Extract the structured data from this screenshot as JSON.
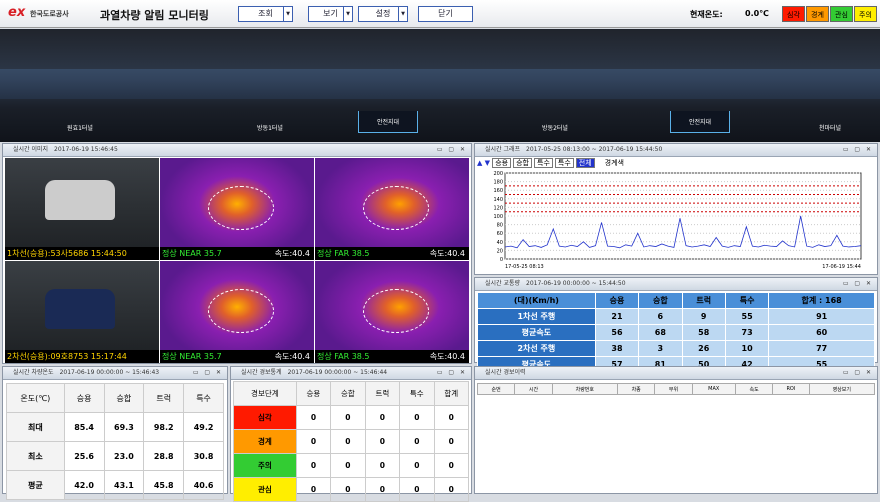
{
  "header": {
    "logo_mark": "ex",
    "logo": "한국도로공사",
    "title": "과열차량 알림 모니터링",
    "buttons": [
      "조회",
      "보기",
      "설정",
      "닫기"
    ],
    "temp_label": "현재온도:",
    "temp_value": "0.0℃",
    "status": [
      "심각",
      "경계",
      "관심",
      "주의"
    ]
  },
  "tunnel": {
    "labels": [
      "원효1터널",
      "방동1터널",
      "안전지대",
      "방동2터널",
      "안전지대",
      "천마터널"
    ]
  },
  "camera": {
    "title": "실시간 이미지",
    "time": "2017-06-19 15:46:45",
    "rows": [
      {
        "plate": "1차선(승용):53사5686 15:44:50",
        "near": "정상 NEAR 35.7",
        "near_speed": "속도:40.4",
        "far": "정상 FAR 38.5",
        "far_speed": "속도:40.4"
      },
      {
        "plate": "2차선(승용):09호8753 15:17:44",
        "near": "정상 NEAR 35.7",
        "near_speed": "속도:40.4",
        "far": "정상 FAR 38.5",
        "far_speed": "속도:40.4"
      }
    ]
  },
  "graph": {
    "title": "실시간 그래프",
    "period": "2017-05-25 08:13:00 ~ 2017-06-19 15:44:50",
    "tabs": [
      "승용",
      "승합",
      "특수",
      "특수",
      "전체"
    ],
    "legend": "경계색",
    "x_start": "17-05-25 08:13",
    "x_end": "17-06-19 15:44",
    "chart": {
      "type": "line",
      "color": "#2233cc",
      "ylim": [
        0,
        200
      ],
      "yticks": [
        0,
        20,
        40,
        60,
        80,
        100,
        120,
        140,
        160,
        180,
        200
      ],
      "thresholds": [
        170,
        150,
        130,
        110
      ],
      "threshold_color": "#cc0000",
      "values": [
        28,
        30,
        26,
        45,
        29,
        31,
        27,
        33,
        70,
        30,
        28,
        32,
        29,
        40,
        27,
        31,
        85,
        30,
        29,
        26,
        33,
        30,
        60,
        28,
        31,
        29,
        35,
        30,
        27,
        95,
        31,
        28,
        30,
        33,
        29,
        50,
        30,
        27,
        31,
        29,
        75,
        30,
        28,
        32,
        30,
        29,
        42,
        31,
        28,
        100,
        30,
        27,
        33,
        29,
        31,
        55,
        30,
        28,
        29,
        31
      ]
    }
  },
  "traffic": {
    "title": "실시간 교통량",
    "period": "2017-06-19 00:00:00 ~ 15:44:50",
    "header": [
      "(대)(Km/h)",
      "승용",
      "승합",
      "트럭",
      "특수",
      "합계 : 168"
    ],
    "rows": [
      [
        "1차선 주행",
        "21",
        "6",
        "9",
        "55",
        "91"
      ],
      [
        "평균속도",
        "56",
        "68",
        "58",
        "73",
        "60"
      ],
      [
        "2차선 주행",
        "38",
        "3",
        "26",
        "10",
        "77"
      ],
      [
        "평균속도",
        "57",
        "81",
        "50",
        "42",
        "55"
      ]
    ]
  },
  "temperature": {
    "title": "실시간 차량온도",
    "period": "2017-06-19 00:00:00 ~ 15:46:43",
    "header": [
      "온도(℃)",
      "승용",
      "승합",
      "트럭",
      "특수"
    ],
    "rows": [
      [
        "최대",
        "85.4",
        "69.3",
        "98.2",
        "49.2"
      ],
      [
        "최소",
        "25.6",
        "23.0",
        "28.8",
        "30.8"
      ],
      [
        "평균",
        "42.0",
        "43.1",
        "45.8",
        "40.6"
      ]
    ]
  },
  "alarm_stats": {
    "title": "실시간 경보통계",
    "period": "2017-06-19 00:00:00 ~ 15:46:44",
    "header": [
      "경보단계",
      "승용",
      "승합",
      "트럭",
      "특수",
      "합계"
    ],
    "rows": [
      [
        "심각",
        "0",
        "0",
        "0",
        "0",
        "0"
      ],
      [
        "경계",
        "0",
        "0",
        "0",
        "0",
        "0"
      ],
      [
        "주의",
        "0",
        "0",
        "0",
        "0",
        "0"
      ],
      [
        "관심",
        "0",
        "0",
        "0",
        "0",
        "0"
      ]
    ]
  },
  "alarm_history": {
    "title": "실시간 경보이력",
    "header": [
      "순번",
      "시간",
      "차량번호",
      "차종",
      "부위",
      "MAX",
      "속도",
      "ROI",
      "영상보기"
    ]
  }
}
